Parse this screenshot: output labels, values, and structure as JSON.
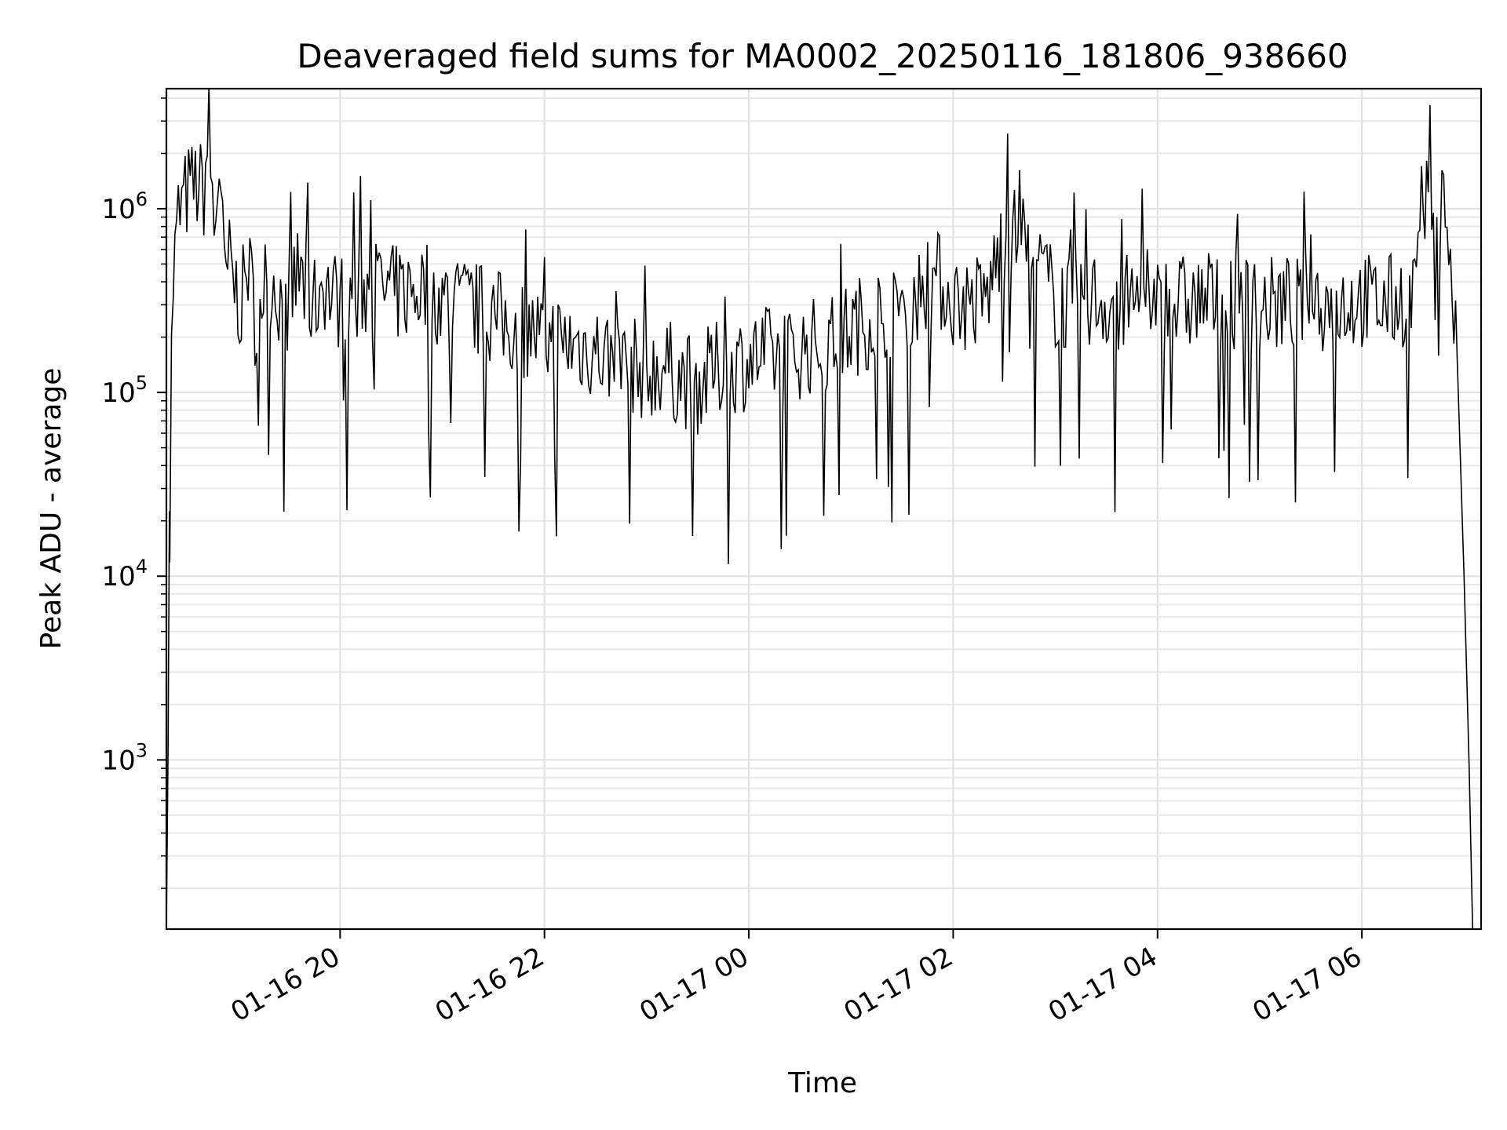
{
  "chart_data": {
    "type": "line",
    "title": "Deaveraged field sums for MA0002_20250116_181806_938660",
    "xlabel": "Time",
    "ylabel": "Peak ADU - average",
    "y_scale": "log",
    "x_range": [
      "2025-01-16 18:18",
      "2025-01-17 07:10"
    ],
    "ylim": [
      120,
      4500000
    ],
    "x_ticks": [
      {
        "label": "01-16 20",
        "time": "2025-01-16 20:00"
      },
      {
        "label": "01-16 22",
        "time": "2025-01-16 22:00"
      },
      {
        "label": "01-17 00",
        "time": "2025-01-17 00:00"
      },
      {
        "label": "01-17 02",
        "time": "2025-01-17 02:00"
      },
      {
        "label": "01-17 04",
        "time": "2025-01-17 04:00"
      },
      {
        "label": "01-17 06",
        "time": "2025-01-17 06:00"
      }
    ],
    "y_ticks": [
      {
        "base": "10",
        "exp": "3",
        "value": 1000
      },
      {
        "base": "10",
        "exp": "4",
        "value": 10000
      },
      {
        "base": "10",
        "exp": "5",
        "value": 100000
      },
      {
        "base": "10",
        "exp": "6",
        "value": 1000000
      }
    ],
    "grid": true,
    "series": [
      {
        "color": "#000000",
        "x": [
          "2025-01-16 18:18",
          "2025-01-16 18:19",
          "2025-01-16 18:20",
          "2025-01-16 18:22",
          "2025-01-16 18:25",
          "2025-01-16 18:30",
          "2025-01-16 18:35",
          "2025-01-16 18:40",
          "2025-01-16 18:43",
          "2025-01-16 18:46",
          "2025-01-16 18:49",
          "2025-01-16 18:52",
          "2025-01-16 18:55",
          "2025-01-16 18:58",
          "2025-01-16 19:02",
          "2025-01-16 19:06",
          "2025-01-16 19:10",
          "2025-01-16 19:15",
          "2025-01-16 19:20",
          "2025-01-16 19:25",
          "2025-01-16 19:30",
          "2025-01-16 19:35",
          "2025-01-16 19:40",
          "2025-01-16 19:45",
          "2025-01-16 19:50",
          "2025-01-16 19:55",
          "2025-01-16 20:00",
          "2025-01-16 20:10",
          "2025-01-16 20:20",
          "2025-01-16 20:30",
          "2025-01-16 20:40",
          "2025-01-16 20:50",
          "2025-01-16 21:00",
          "2025-01-16 21:10",
          "2025-01-16 21:20",
          "2025-01-16 21:30",
          "2025-01-16 21:40",
          "2025-01-16 21:50",
          "2025-01-16 22:00",
          "2025-01-16 22:10",
          "2025-01-16 22:20",
          "2025-01-16 22:30",
          "2025-01-16 22:40",
          "2025-01-16 22:50",
          "2025-01-16 23:00",
          "2025-01-16 23:10",
          "2025-01-16 23:20",
          "2025-01-16 23:30",
          "2025-01-16 23:40",
          "2025-01-16 23:50",
          "2025-01-17 00:00",
          "2025-01-17 00:10",
          "2025-01-17 00:20",
          "2025-01-17 00:30",
          "2025-01-17 00:40",
          "2025-01-17 00:50",
          "2025-01-17 01:00",
          "2025-01-17 01:10",
          "2025-01-17 01:20",
          "2025-01-17 01:30",
          "2025-01-17 01:40",
          "2025-01-17 01:50",
          "2025-01-17 02:00",
          "2025-01-17 02:10",
          "2025-01-17 02:20",
          "2025-01-17 02:30",
          "2025-01-17 02:40",
          "2025-01-17 02:50",
          "2025-01-17 03:00",
          "2025-01-17 03:10",
          "2025-01-17 03:20",
          "2025-01-17 03:30",
          "2025-01-17 03:40",
          "2025-01-17 03:50",
          "2025-01-17 04:00",
          "2025-01-17 04:10",
          "2025-01-17 04:20",
          "2025-01-17 04:30",
          "2025-01-17 04:40",
          "2025-01-17 04:50",
          "2025-01-17 05:00",
          "2025-01-17 05:10",
          "2025-01-17 05:20",
          "2025-01-17 05:30",
          "2025-01-17 05:40",
          "2025-01-17 05:50",
          "2025-01-17 06:00",
          "2025-01-17 06:10",
          "2025-01-17 06:20",
          "2025-01-17 06:30",
          "2025-01-17 06:38",
          "2025-01-17 06:44",
          "2025-01-17 06:50",
          "2025-01-17 06:56",
          "2025-01-17 07:00",
          "2025-01-17 07:03",
          "2025-01-17 07:05"
        ],
        "y": [
          120,
          1200,
          60000,
          400000,
          900000,
          1200000,
          1350000,
          1250000,
          2800000,
          700000,
          1800000,
          400000,
          500000,
          380000,
          300000,
          500000,
          260000,
          380000,
          420000,
          320000,
          300000,
          450000,
          350000,
          300000,
          420000,
          330000,
          320000,
          350000,
          380000,
          340000,
          350000,
          380000,
          320000,
          300000,
          280000,
          260000,
          230000,
          220000,
          200000,
          190000,
          180000,
          170000,
          150000,
          140000,
          130000,
          140000,
          120000,
          110000,
          130000,
          140000,
          150000,
          160000,
          150000,
          170000,
          180000,
          190000,
          220000,
          250000,
          280000,
          320000,
          350000,
          420000,
          320000,
          300000,
          330000,
          750000,
          700000,
          500000,
          320000,
          300000,
          330000,
          310000,
          300000,
          320000,
          330000,
          300000,
          310000,
          320000,
          300000,
          310000,
          290000,
          300000,
          310000,
          320000,
          300000,
          310000,
          320000,
          300000,
          310000,
          350000,
          1000000,
          1200000,
          950000,
          150000,
          10000,
          900,
          120
        ]
      }
    ]
  }
}
